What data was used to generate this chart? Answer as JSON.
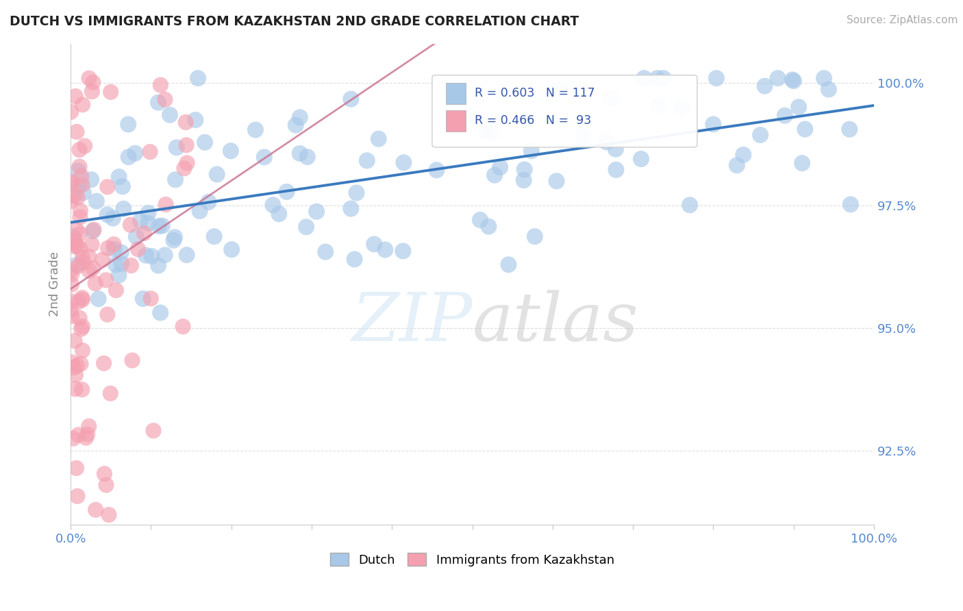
{
  "title": "DUTCH VS IMMIGRANTS FROM KAZAKHSTAN 2ND GRADE CORRELATION CHART",
  "source": "Source: ZipAtlas.com",
  "ylabel": "2nd Grade",
  "xlim": [
    0.0,
    1.0
  ],
  "ylim": [
    0.91,
    1.008
  ],
  "yticks": [
    0.925,
    0.95,
    0.975,
    1.0
  ],
  "ytick_labels": [
    "92.5%",
    "95.0%",
    "97.5%",
    "100.0%"
  ],
  "legend_dutch_R": "R = 0.603",
  "legend_dutch_N": "N = 117",
  "legend_kaz_R": "R = 0.466",
  "legend_kaz_N": "N =  93",
  "dutch_color": "#a8c8e8",
  "kaz_color": "#f4a0b0",
  "trend_dutch_color": "#3a7abf",
  "trend_kaz_color": "#c87090",
  "background_color": "#ffffff",
  "title_color": "#222222",
  "source_color": "#aaaaaa",
  "ylabel_color": "#888888",
  "ytick_color": "#5588cc",
  "xtick_color": "#5588cc",
  "grid_color": "#dddddd",
  "legend_text_color": "#3355aa"
}
